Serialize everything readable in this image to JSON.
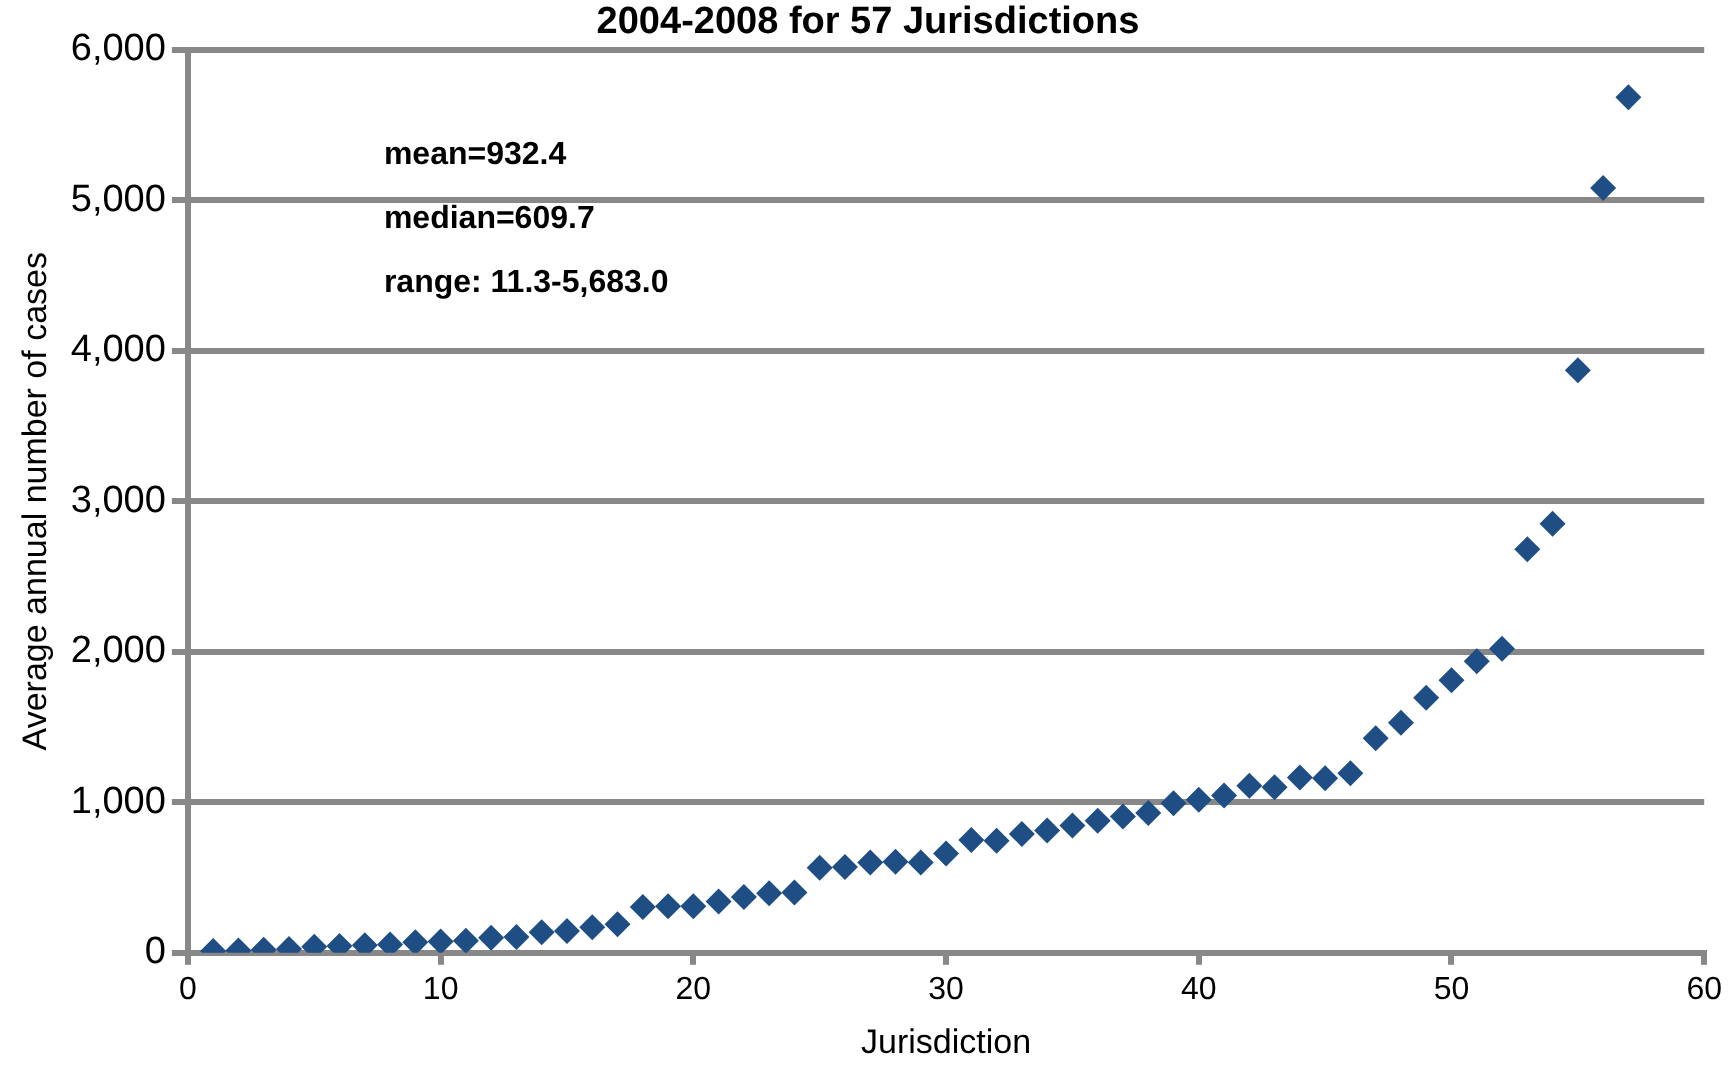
{
  "chart_data": {
    "type": "scatter",
    "title": "2004-2008 for 57 Jurisdictions",
    "xlabel": "Jurisdiction",
    "ylabel": "Average annual number of cases",
    "x": [
      1,
      2,
      3,
      4,
      5,
      6,
      7,
      8,
      9,
      10,
      11,
      12,
      13,
      14,
      15,
      16,
      17,
      18,
      19,
      20,
      21,
      22,
      23,
      24,
      25,
      26,
      27,
      28,
      29,
      30,
      31,
      32,
      33,
      34,
      35,
      36,
      37,
      38,
      39,
      40,
      41,
      42,
      43,
      44,
      45,
      46,
      47,
      48,
      49,
      50,
      51,
      52,
      53,
      54,
      55,
      56,
      57
    ],
    "series": [
      {
        "color": "#1f4e85",
        "values": [
          11.3,
          15,
          20,
          25,
          40,
          45,
          50,
          55,
          70,
          75,
          80,
          100,
          105,
          136,
          145,
          170,
          190,
          305,
          310,
          310,
          340,
          370,
          395,
          400,
          565,
          570,
          600,
          605,
          600,
          660,
          750,
          745,
          790,
          812,
          845,
          877,
          905,
          928,
          993,
          1017,
          1045,
          1110,
          1100,
          1165,
          1160,
          1193,
          1425,
          1528,
          1695,
          1810,
          1936,
          2020,
          2680,
          2850,
          3870,
          5080,
          5683
        ]
      }
    ],
    "xlim": [
      0,
      60
    ],
    "xticks": [
      0,
      10,
      20,
      30,
      40,
      50,
      60
    ],
    "ylim": [
      0,
      6000
    ],
    "yticks": [
      {
        "value": 0,
        "label": "0"
      },
      {
        "value": 1000,
        "label": "1,000"
      },
      {
        "value": 2000,
        "label": "2,000"
      },
      {
        "value": 3000,
        "label": "3,000"
      },
      {
        "value": 4000,
        "label": "4,000"
      },
      {
        "value": 5000,
        "label": "5,000"
      },
      {
        "value": 6000,
        "label": "6,000"
      }
    ],
    "grid": "y",
    "legend": false,
    "marker": "diamond",
    "annotations": [
      "mean=932.4",
      "median=609.7",
      "range: 11.3-5,683.0"
    ]
  }
}
